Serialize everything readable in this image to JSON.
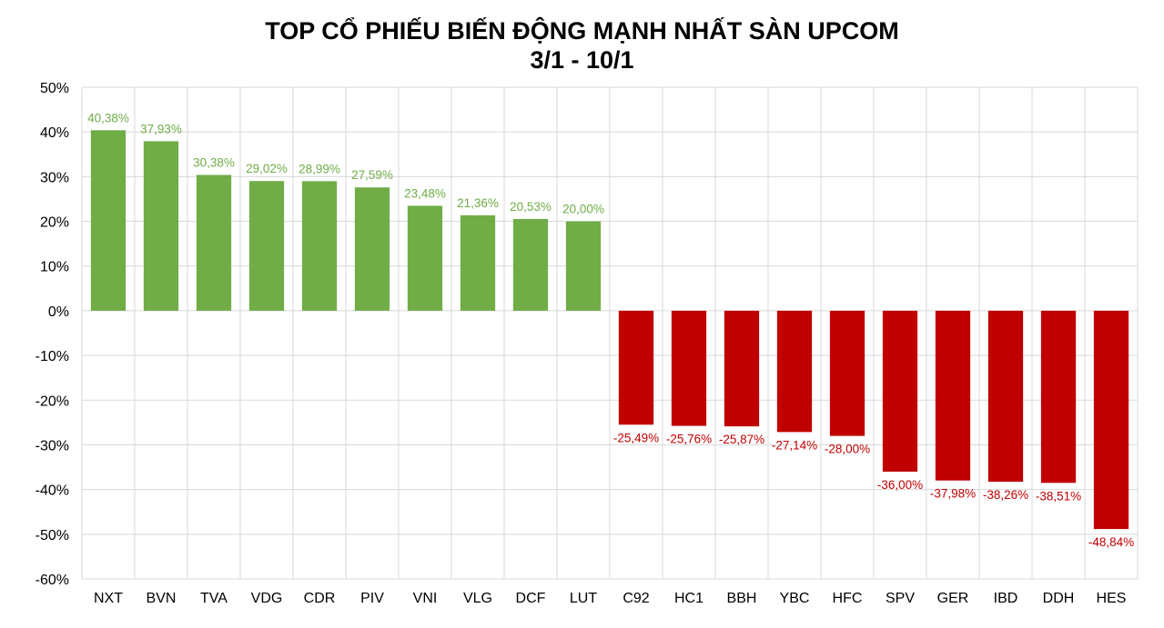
{
  "chart_data": {
    "type": "bar",
    "title_line1": "TOP CỔ PHIẾU BIẾN ĐỘNG MẠNH NHẤT SÀN UPCOM",
    "title_line2": "3/1 - 10/1",
    "xlabel": "",
    "ylabel": "",
    "ylim": [
      -60,
      50
    ],
    "ytick_step": 10,
    "ytick_labels": [
      "50%",
      "40%",
      "30%",
      "20%",
      "10%",
      "0%",
      "-10%",
      "-20%",
      "-30%",
      "-40%",
      "-50%",
      "-60%"
    ],
    "grid": true,
    "legend": "none",
    "positive_color": "#70ad47",
    "negative_color": "#c00000",
    "categories": [
      "NXT",
      "BVN",
      "TVA",
      "VDG",
      "CDR",
      "PIV",
      "VNI",
      "VLG",
      "DCF",
      "LUT",
      "C92",
      "HC1",
      "BBH",
      "YBC",
      "HFC",
      "SPV",
      "GER",
      "IBD",
      "DDH",
      "HES"
    ],
    "values": [
      40.38,
      37.93,
      30.38,
      29.02,
      28.99,
      27.59,
      23.48,
      21.36,
      20.53,
      20.0,
      -25.49,
      -25.76,
      -25.87,
      -27.14,
      -28.0,
      -36.0,
      -37.98,
      -38.26,
      -38.51,
      -48.84
    ],
    "data_labels": [
      "40,38%",
      "37,93%",
      "30,38%",
      "29,02%",
      "28,99%",
      "27,59%",
      "23,48%",
      "21,36%",
      "20,53%",
      "20,00%",
      "-25,49%",
      "-25,76%",
      "-25,87%",
      "-27,14%",
      "-28,00%",
      "-36,00%",
      "-37,98%",
      "-38,26%",
      "-38,51%",
      "-48,84%"
    ]
  }
}
